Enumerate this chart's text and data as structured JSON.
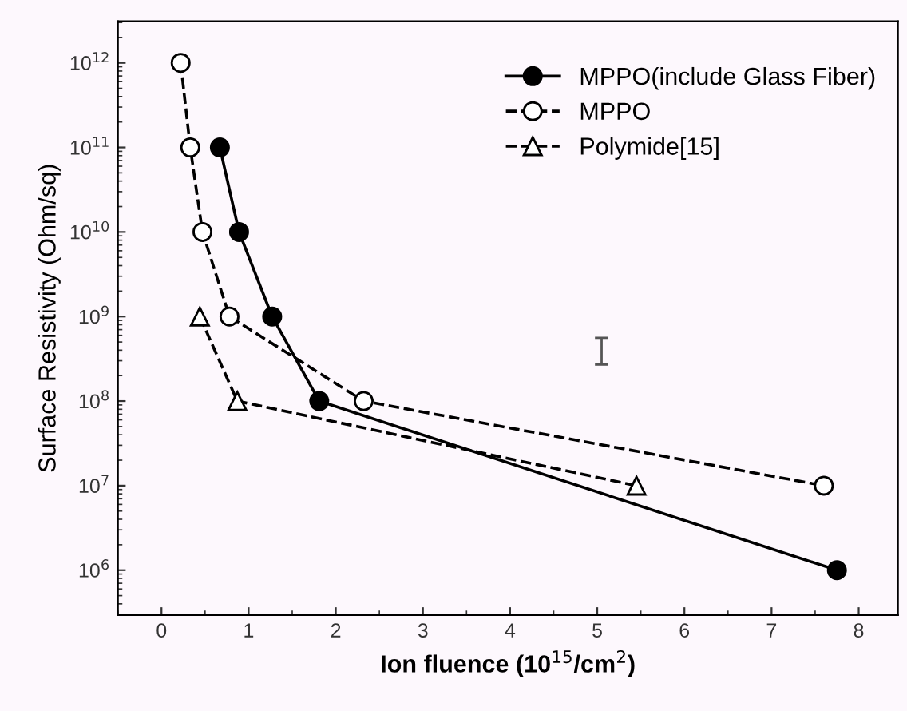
{
  "chart_data": {
    "type": "line",
    "xlabel": "Ion fluence (10$^{15}$/cm$^{2}$)",
    "ylabel": "Surface Resistivity (Ohm/sq)",
    "log": "y",
    "xlim": [
      -0.5,
      8.45
    ],
    "xticks": [
      0,
      1,
      2,
      3,
      4,
      5,
      6,
      7,
      8
    ],
    "ylim": [
      295000,
      3100000000000.0
    ],
    "yticks": [
      {
        "value": 1000000.0,
        "label": "10$^{6}$"
      },
      {
        "value": 10000000.0,
        "label": "10$^{7}$"
      },
      {
        "value": 100000000.0,
        "label": "10$^{8}$"
      },
      {
        "value": 1000000000.0,
        "label": "10$^{9}$"
      },
      {
        "value": 10000000000.0,
        "label": "10$^{10}$"
      },
      {
        "value": 100000000000.0,
        "label": "10$^{11}$"
      },
      {
        "value": 1000000000000.0,
        "label": "10$^{12}$"
      }
    ],
    "grid": false,
    "legend": "top right",
    "series": [
      {
        "name": "MPPO(include Glass Fiber)",
        "color": "#000000",
        "marker": "circle",
        "line_style": "solid",
        "x": [
          0.67,
          0.89,
          1.27,
          1.81,
          7.75
        ],
        "values": [
          100000000000.0,
          10000000000.0,
          1000000000.0,
          100000000.0,
          1000000.0
        ]
      },
      {
        "name": "MPPO",
        "color": "#000000",
        "marker": "circle",
        "line_style": "dashed",
        "x": [
          0.22,
          0.33,
          0.47,
          0.78,
          2.32,
          7.6
        ],
        "values": [
          1000000000000.0,
          100000000000.0,
          10000000000.0,
          1000000000.0,
          100000000.0,
          10000000.0
        ]
      },
      {
        "name": "Polymide[15]",
        "color": "#000000",
        "marker": "triangle",
        "line_style": "dashed",
        "x": [
          0.44,
          0.87,
          5.45
        ],
        "values": [
          1000000000.0,
          100000000.0,
          10000000.0
        ]
      }
    ]
  }
}
